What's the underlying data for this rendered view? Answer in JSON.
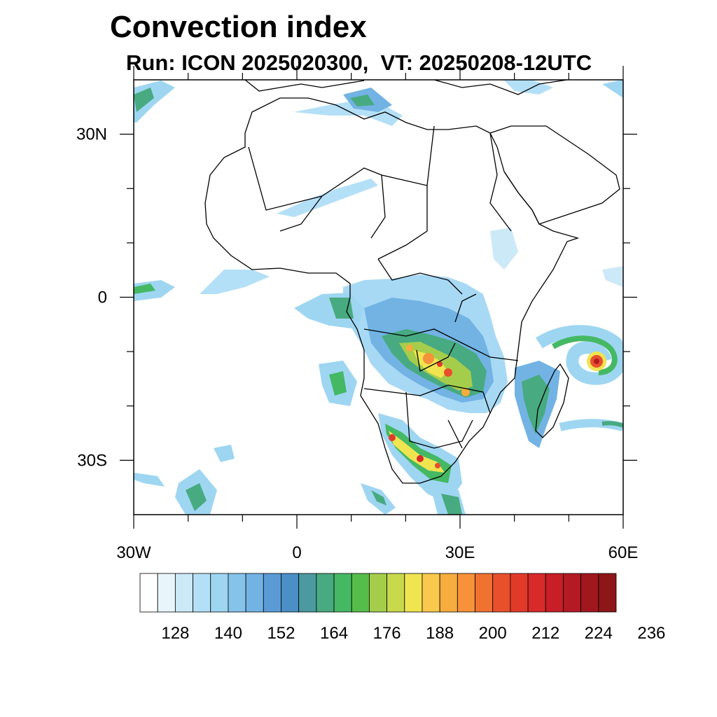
{
  "title": "Convection index",
  "subtitle": "Run: ICON 2025020300,  VT: 20250208-12UTC",
  "map": {
    "lon_range": [
      -30,
      60
    ],
    "lat_range": [
      -40,
      40
    ],
    "lat_labels": [
      {
        "value": 30,
        "label": "30N"
      },
      {
        "value": 0,
        "label": "0"
      },
      {
        "value": -30,
        "label": "30S"
      }
    ],
    "lon_labels": [
      {
        "value": -30,
        "label": "30W"
      },
      {
        "value": 0,
        "label": "0"
      },
      {
        "value": 30,
        "label": "30E"
      },
      {
        "value": 60,
        "label": "60E"
      }
    ],
    "minor_lon_ticks": [
      -20,
      -10,
      10,
      20,
      40,
      50
    ],
    "minor_lat_ticks": [
      20,
      10,
      -10,
      -20
    ]
  },
  "colorbar": {
    "colors": [
      "#ffffff",
      "#e8f6fc",
      "#cce9f8",
      "#b4e0f7",
      "#9ed6f2",
      "#85c3ea",
      "#72b3e4",
      "#5a9bd6",
      "#4a8fc6",
      "#4a9aa0",
      "#48aa80",
      "#45b864",
      "#56bd4a",
      "#a5cd4c",
      "#c8d94c",
      "#f0e450",
      "#f8c94c",
      "#f7ac3e",
      "#f5923a",
      "#ef7230",
      "#e8502c",
      "#e23a2a",
      "#d82a2a",
      "#c81e28",
      "#b31a24",
      "#a0181e",
      "#8c1618"
    ],
    "labels": [
      "128",
      "140",
      "152",
      "164",
      "176",
      "188",
      "200",
      "212",
      "224",
      "236"
    ]
  }
}
